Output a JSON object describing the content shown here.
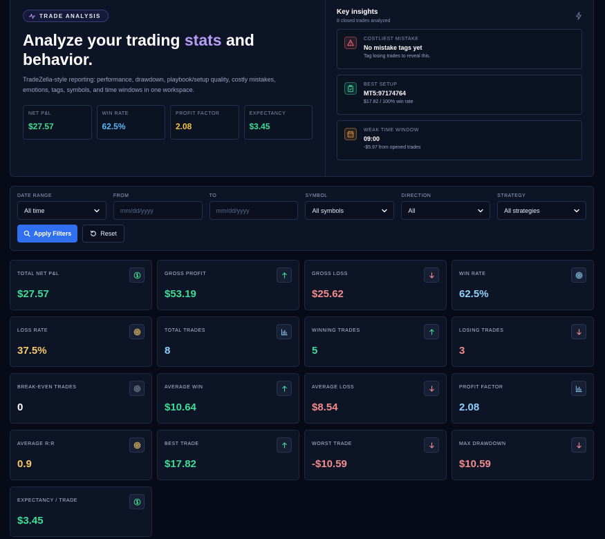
{
  "hero": {
    "badge": "TRADE ANALYSIS",
    "title_pre": "Analyze your trading ",
    "title_accent": "stats",
    "title_post": " and behavior.",
    "description": "TradeZella-style reporting: performance, drawdown, playbook/setup quality, costly mistakes, emotions, tags, symbols, and time windows in one workspace.",
    "stats": [
      {
        "label": "NET P&L",
        "value": "$27.57",
        "color": "#3ddc97"
      },
      {
        "label": "WIN RATE",
        "value": "62.5%",
        "color": "#5ab8f7"
      },
      {
        "label": "PROFIT FACTOR",
        "value": "2.08",
        "color": "#f6c343"
      },
      {
        "label": "EXPECTANCY",
        "value": "$3.45",
        "color": "#3ddc97"
      }
    ]
  },
  "insights": {
    "title": "Key insights",
    "subtitle": "8 closed trades analyzed",
    "items": [
      {
        "label": "COSTLIEST MISTAKE",
        "main": "No mistake tags yet",
        "sub": "Tag losing trades to reveal this.",
        "icon": "alert-triangle-icon",
        "color": "#f06b6b"
      },
      {
        "label": "BEST SETUP",
        "main": "MT5:97174764",
        "sub": "$17.82 / 100% win rate",
        "icon": "clipboard-icon",
        "color": "#3ddc97"
      },
      {
        "label": "WEAK TIME WINDOW",
        "main": "09:00",
        "sub": "-$5.97 from opened trades",
        "icon": "calendar-icon",
        "color": "#f59e3b"
      }
    ]
  },
  "filters": {
    "date_range": {
      "label": "DATE RANGE",
      "value": "All time"
    },
    "from": {
      "label": "FROM",
      "placeholder": "mm/dd/yyyy"
    },
    "to": {
      "label": "TO",
      "placeholder": "mm/dd/yyyy"
    },
    "symbol": {
      "label": "SYMBOL",
      "value": "All symbols"
    },
    "direction": {
      "label": "DIRECTION",
      "value": "All"
    },
    "strategy": {
      "label": "STRATEGY",
      "value": "All strategies"
    },
    "apply_label": "Apply Filters",
    "reset_label": "Reset"
  },
  "cards": [
    {
      "label": "TOTAL NET P&L",
      "value": "$27.57",
      "color": "#3ddc97",
      "icon": "dollar-icon"
    },
    {
      "label": "GROSS PROFIT",
      "value": "$53.19",
      "color": "#3ddc97",
      "icon": "arrow-up-icon"
    },
    {
      "label": "GROSS LOSS",
      "value": "$25.62",
      "color": "#f38b8b",
      "icon": "arrow-down-icon"
    },
    {
      "label": "WIN RATE",
      "value": "62.5%",
      "color": "#8fd0fb",
      "icon": "target-icon"
    },
    {
      "label": "LOSS RATE",
      "value": "37.5%",
      "color": "#f6c86a",
      "icon": "target-icon"
    },
    {
      "label": "TOTAL TRADES",
      "value": "8",
      "color": "#8fd0fb",
      "icon": "bar-chart-icon"
    },
    {
      "label": "WINNING TRADES",
      "value": "5",
      "color": "#3ddc97",
      "icon": "arrow-up-icon"
    },
    {
      "label": "LOSING TRADES",
      "value": "3",
      "color": "#f38b8b",
      "icon": "arrow-down-icon"
    },
    {
      "label": "BREAK-EVEN TRADES",
      "value": "0",
      "color": "#ffffff",
      "icon": "target-icon"
    },
    {
      "label": "AVERAGE WIN",
      "value": "$10.64",
      "color": "#3ddc97",
      "icon": "arrow-up-icon"
    },
    {
      "label": "AVERAGE LOSS",
      "value": "$8.54",
      "color": "#f38b8b",
      "icon": "arrow-down-icon"
    },
    {
      "label": "PROFIT FACTOR",
      "value": "2.08",
      "color": "#8fd0fb",
      "icon": "bar-chart-icon"
    },
    {
      "label": "AVERAGE R:R",
      "value": "0.9",
      "color": "#f6c86a",
      "icon": "target-icon"
    },
    {
      "label": "BEST TRADE",
      "value": "$17.82",
      "color": "#3ddc97",
      "icon": "arrow-up-icon"
    },
    {
      "label": "WORST TRADE",
      "value": "-$10.59",
      "color": "#f38b8b",
      "icon": "arrow-down-icon"
    },
    {
      "label": "MAX DRAWDOWN",
      "value": "$10.59",
      "color": "#f38b8b",
      "icon": "arrow-down-icon"
    },
    {
      "label": "EXPECTANCY / TRADE",
      "value": "$3.45",
      "color": "#3ddc97",
      "icon": "dollar-icon"
    }
  ]
}
